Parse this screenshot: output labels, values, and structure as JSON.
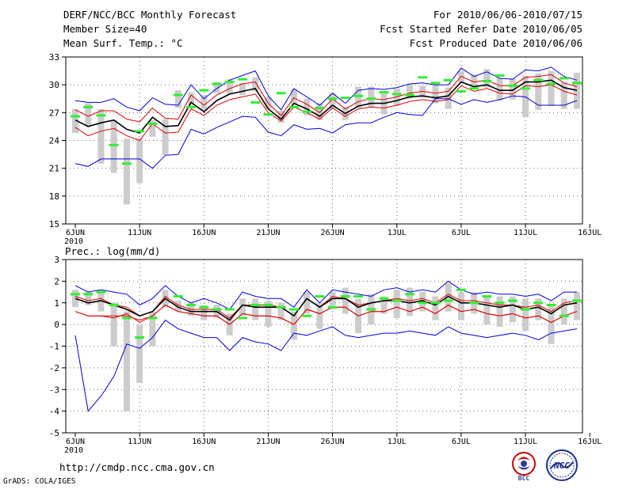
{
  "header": {
    "title": "DERF/NCC/BCC Monthly Forecast",
    "member_size": "Member Size=40",
    "variable_temp": "Mean Surf. Temp.: °C",
    "period": "For 2010/06/06-2010/07/15",
    "start_date": "Fcst Started Refer Date 2010/06/05",
    "produced_date": "Fcst Produced Date 2010/06/06"
  },
  "footer": {
    "url": "http://cmdp.ncc.cma.gov.cn",
    "credit": "GrADS: COLA/IGES",
    "logo_bcc": "BCC",
    "logo_ncc": "NCC"
  },
  "colors": {
    "mean_line": "#000000",
    "envelope_line": "#0000dd",
    "inner_line": "#dd0000",
    "box": "#cccccc",
    "median_tick": "#33ee33",
    "grid": "#666666"
  },
  "chart_data": [
    {
      "type": "line",
      "title": "Mean Surf. Temp.: °C",
      "x_tick_labels": [
        "6JUN",
        "11JUN",
        "16JUN",
        "21JUN",
        "26JUN",
        "1JUL",
        "6JUL",
        "11JUL",
        "16JUL"
      ],
      "x_tick_days": [
        1,
        6,
        11,
        16,
        21,
        26,
        31,
        36,
        41
      ],
      "x_sublabel": "2010",
      "days": [
        1,
        2,
        3,
        4,
        5,
        6,
        7,
        8,
        9,
        10,
        11,
        12,
        13,
        14,
        15,
        16,
        17,
        18,
        19,
        20,
        21,
        22,
        23,
        24,
        25,
        26,
        27,
        28,
        29,
        30,
        31,
        32,
        33,
        34,
        35,
        36,
        37,
        38,
        39,
        40
      ],
      "ylim": [
        15,
        33
      ],
      "yticks": [
        15,
        18,
        21,
        24,
        27,
        30,
        33
      ],
      "series": [
        {
          "name": "max",
          "values": [
            28.3,
            28.1,
            28.1,
            28.5,
            27.6,
            27.2,
            28.6,
            27.9,
            27.8,
            30.0,
            28.5,
            29.6,
            30.5,
            31.0,
            31.5,
            28.8,
            27.3,
            29.6,
            28.7,
            27.8,
            29.1,
            28.0,
            29.4,
            29.6,
            29.5,
            29.7,
            30.1,
            30.2,
            30.0,
            30.0,
            31.8,
            30.9,
            31.4,
            30.7,
            30.6,
            31.6,
            31.5,
            31.9,
            30.9,
            30.5
          ]
        },
        {
          "name": "upper",
          "values": [
            27.3,
            26.6,
            27.2,
            27.2,
            26.3,
            26.0,
            27.5,
            26.4,
            26.3,
            28.9,
            27.8,
            28.9,
            29.6,
            30.1,
            30.3,
            28.0,
            26.7,
            28.6,
            27.9,
            27.0,
            28.5,
            27.4,
            28.2,
            28.5,
            28.4,
            28.7,
            29.1,
            29.3,
            29.1,
            29.3,
            30.9,
            30.3,
            30.5,
            29.9,
            29.9,
            30.8,
            30.9,
            31.1,
            30.2,
            29.8
          ]
        },
        {
          "name": "mean",
          "values": [
            26.2,
            25.5,
            25.9,
            26.2,
            25.2,
            24.8,
            26.5,
            25.5,
            25.6,
            28.1,
            27.1,
            28.3,
            29.0,
            29.3,
            29.6,
            27.4,
            26.3,
            28.0,
            27.4,
            26.6,
            27.8,
            26.9,
            27.7,
            28.0,
            28.0,
            28.3,
            28.7,
            28.8,
            28.6,
            28.8,
            30.3,
            29.8,
            30.0,
            29.4,
            29.4,
            30.3,
            30.3,
            30.5,
            29.7,
            29.4
          ]
        },
        {
          "name": "lower",
          "values": [
            25.4,
            24.5,
            25.0,
            25.3,
            24.5,
            24.0,
            25.8,
            24.8,
            24.9,
            27.4,
            26.7,
            27.8,
            28.4,
            28.7,
            29.0,
            27.0,
            26.1,
            27.6,
            27.0,
            26.3,
            27.5,
            26.6,
            27.4,
            27.6,
            27.5,
            27.8,
            28.2,
            28.4,
            28.2,
            28.4,
            29.9,
            29.3,
            29.6,
            29.1,
            29.0,
            29.9,
            29.8,
            30.0,
            29.3,
            28.9
          ]
        },
        {
          "name": "min",
          "values": [
            21.5,
            21.2,
            22.0,
            22.0,
            22.0,
            22.0,
            21.0,
            22.4,
            22.5,
            25.2,
            24.7,
            25.4,
            26.0,
            26.6,
            26.5,
            24.9,
            24.5,
            25.7,
            25.2,
            25.3,
            24.8,
            25.7,
            25.9,
            25.9,
            26.5,
            27.0,
            26.8,
            26.7,
            28.5,
            28.5,
            27.9,
            28.4,
            28.1,
            28.4,
            28.8,
            28.7,
            27.8,
            27.8,
            27.8,
            28.3
          ]
        }
      ],
      "boxes": [
        [
          24.8,
          27.4
        ],
        [
          25.6,
          28.0
        ],
        [
          21.5,
          27.4
        ],
        [
          20.5,
          26.2
        ],
        [
          17.1,
          24.2
        ],
        [
          19.4,
          24.2
        ],
        [
          24.4,
          26.2
        ],
        [
          22.4,
          26.3
        ],
        [
          27.5,
          29.4
        ],
        [
          27.8,
          29.2
        ],
        [
          27.3,
          28.9
        ],
        [
          29.1,
          30.3
        ],
        [
          29.0,
          30.6
        ],
        [
          28.9,
          30.2
        ],
        [
          29.3,
          30.8
        ],
        [
          27.4,
          28.7
        ],
        [
          25.9,
          27.2
        ],
        [
          27.9,
          29.5
        ],
        [
          26.7,
          28.5
        ],
        [
          26.2,
          28.0
        ],
        [
          27.4,
          29.1
        ],
        [
          26.2,
          27.6
        ],
        [
          27.5,
          29.8
        ],
        [
          27.6,
          29.8
        ],
        [
          26.8,
          29.1
        ],
        [
          27.7,
          29.6
        ],
        [
          28.5,
          30.1
        ],
        [
          28.6,
          29.9
        ],
        [
          28.0,
          30.0
        ],
        [
          27.4,
          29.7
        ],
        [
          30.2,
          31.5
        ],
        [
          29.8,
          31.1
        ],
        [
          29.7,
          31.7
        ],
        [
          28.3,
          30.7
        ],
        [
          28.4,
          30.7
        ],
        [
          26.5,
          31.0
        ],
        [
          27.3,
          31.2
        ],
        [
          27.7,
          31.5
        ],
        [
          27.4,
          30.3
        ],
        [
          27.4,
          31.3
        ]
      ],
      "medians": [
        26.6,
        27.6,
        26.7,
        23.5,
        21.5,
        25.0,
        25.8,
        28.9,
        27.6,
        29.4,
        30.1,
        30.3,
        30.6,
        28.1,
        26.8,
        29.1,
        27.6,
        27.1,
        27.5,
        28.5,
        28.6,
        28.8,
        28.5,
        29.2,
        29.0,
        28.9,
        30.8,
        30.2,
        30.5,
        29.3,
        29.6,
        30.4,
        31.0,
        29.9,
        29.6,
        30.5,
        30.1,
        30.7,
        30.2,
        30.2
      ],
      "median_days": [
        1,
        2,
        3,
        4,
        5,
        6,
        7,
        9,
        10,
        11,
        12,
        13,
        14,
        15,
        16,
        17,
        18,
        19,
        20,
        21,
        22,
        23,
        24,
        25,
        26,
        27,
        28,
        29,
        30,
        31,
        32,
        33,
        34,
        35,
        36,
        37,
        38,
        39,
        40,
        40
      ]
    },
    {
      "type": "line",
      "title": "Prec.: log(mm/d)",
      "x_tick_labels": [
        "6JUN",
        "11JUN",
        "16JUN",
        "21JUN",
        "26JUN",
        "1JUL",
        "6JUL",
        "11JUL",
        "16JUL"
      ],
      "x_tick_days": [
        1,
        6,
        11,
        16,
        21,
        26,
        31,
        36,
        41
      ],
      "x_sublabel": "2010",
      "days": [
        1,
        2,
        3,
        4,
        5,
        6,
        7,
        8,
        9,
        10,
        11,
        12,
        13,
        14,
        15,
        16,
        17,
        18,
        19,
        20,
        21,
        22,
        23,
        24,
        25,
        26,
        27,
        28,
        29,
        30,
        31,
        32,
        33,
        34,
        35,
        36,
        37,
        38,
        39,
        40
      ],
      "ylim": [
        -5,
        3
      ],
      "yticks": [
        -5,
        -4,
        -3,
        -2,
        -1,
        0,
        1,
        2,
        3
      ],
      "series": [
        {
          "name": "max",
          "values": [
            1.8,
            1.5,
            1.6,
            1.5,
            1.4,
            0.9,
            1.2,
            1.8,
            1.3,
            1.0,
            1.2,
            1.0,
            0.7,
            1.5,
            1.3,
            1.2,
            1.2,
            0.8,
            1.6,
            1.0,
            1.6,
            1.5,
            1.4,
            1.3,
            1.6,
            1.7,
            1.5,
            1.6,
            1.5,
            2.0,
            1.6,
            1.4,
            1.5,
            1.4,
            1.4,
            1.3,
            1.4,
            1.1,
            1.5,
            1.5
          ]
        },
        {
          "name": "upper",
          "values": [
            1.3,
            1.1,
            1.2,
            0.9,
            0.8,
            0.4,
            0.6,
            1.3,
            0.9,
            0.7,
            0.7,
            0.7,
            0.3,
            0.9,
            0.9,
            0.9,
            0.8,
            0.4,
            1.2,
            0.8,
            1.3,
            1.2,
            0.9,
            1.0,
            1.1,
            1.2,
            1.1,
            1.2,
            1.0,
            1.4,
            1.1,
            1.1,
            1.0,
            0.9,
            0.9,
            0.8,
            0.9,
            0.6,
            1.0,
            1.1
          ]
        },
        {
          "name": "mean",
          "values": [
            1.2,
            1.0,
            1.1,
            0.9,
            0.7,
            0.4,
            0.6,
            1.2,
            0.8,
            0.6,
            0.6,
            0.6,
            0.2,
            0.9,
            0.8,
            0.8,
            0.8,
            0.4,
            1.2,
            0.8,
            1.2,
            1.2,
            0.8,
            1.0,
            1.1,
            1.1,
            1.0,
            1.1,
            0.9,
            1.3,
            1.0,
            1.0,
            0.9,
            0.8,
            0.9,
            0.7,
            0.8,
            0.5,
            0.9,
            1.0
          ]
        },
        {
          "name": "lower",
          "values": [
            0.6,
            0.4,
            0.4,
            0.3,
            0.5,
            0.1,
            0.4,
            0.9,
            0.6,
            0.5,
            0.4,
            0.4,
            0.0,
            0.5,
            0.4,
            0.4,
            0.3,
            0.0,
            0.7,
            0.5,
            0.8,
            0.8,
            0.4,
            0.6,
            0.6,
            0.8,
            0.6,
            0.8,
            0.5,
            0.9,
            0.6,
            0.7,
            0.5,
            0.4,
            0.5,
            0.3,
            0.4,
            0.1,
            0.4,
            0.6
          ]
        },
        {
          "name": "min",
          "values": [
            -0.5,
            -4.0,
            -3.3,
            -2.4,
            -0.9,
            -1.1,
            -0.6,
            0.2,
            -0.2,
            -0.4,
            -0.6,
            -0.6,
            -1.2,
            -0.6,
            -0.8,
            -0.9,
            -1.2,
            -0.4,
            -0.5,
            -0.3,
            -0.1,
            -0.5,
            -0.6,
            -0.5,
            -0.4,
            -0.4,
            -0.3,
            -0.4,
            -0.5,
            -0.1,
            -0.4,
            -0.5,
            -0.6,
            -0.5,
            -0.4,
            -0.5,
            -0.7,
            -0.4,
            -0.3,
            -0.2
          ]
        },
        {
          "name": "red_mid",
          "values": [
            0.6,
            0.4,
            0.4,
            0.4,
            0.4,
            0.2,
            0.4,
            0.9,
            0.6,
            0.5,
            0.4,
            0.4,
            0.0,
            0.5,
            0.4,
            0.4,
            0.3,
            0.0,
            0.7,
            0.5,
            0.8,
            0.8,
            0.4,
            0.6,
            0.6,
            0.8,
            0.6,
            0.8,
            0.5,
            0.9,
            0.6,
            0.7,
            0.5,
            0.4,
            0.5,
            0.3,
            0.4,
            0.1,
            0.4,
            0.6
          ]
        }
      ],
      "boxes": [
        [
          0.8,
          1.6
        ],
        [
          0.9,
          1.5
        ],
        [
          0.6,
          1.5
        ],
        [
          -1.0,
          1.0
        ],
        [
          -4.0,
          0.6
        ],
        [
          -2.7,
          0.0
        ],
        [
          -1.0,
          0.6
        ],
        [
          0.8,
          1.6
        ],
        [
          0.6,
          1.1
        ],
        [
          0.4,
          1.0
        ],
        [
          0.2,
          0.9
        ],
        [
          0.3,
          0.9
        ],
        [
          -0.5,
          0.5
        ],
        [
          0.4,
          1.2
        ],
        [
          0.2,
          1.2
        ],
        [
          -0.1,
          1.1
        ],
        [
          0.2,
          1.0
        ],
        [
          -0.7,
          0.6
        ],
        [
          0.5,
          1.5
        ],
        [
          -0.2,
          1.0
        ],
        [
          0.7,
          1.5
        ],
        [
          0.5,
          1.7
        ],
        [
          -0.4,
          1.2
        ],
        [
          0.0,
          1.4
        ],
        [
          0.5,
          1.3
        ],
        [
          0.3,
          1.6
        ],
        [
          0.4,
          1.7
        ],
        [
          0.6,
          1.5
        ],
        [
          0.2,
          1.3
        ],
        [
          0.6,
          1.9
        ],
        [
          0.2,
          1.5
        ],
        [
          0.5,
          1.5
        ],
        [
          0.0,
          1.3
        ],
        [
          -0.1,
          1.3
        ],
        [
          0.1,
          1.3
        ],
        [
          -0.3,
          1.2
        ],
        [
          0.2,
          1.2
        ],
        [
          -0.9,
          0.9
        ],
        [
          0.0,
          1.2
        ],
        [
          0.2,
          1.5
        ]
      ],
      "medians": [
        1.4,
        1.4,
        1.5,
        0.9,
        0.3,
        -0.6,
        0.3,
        1.3,
        0.9,
        0.8,
        0.7,
        0.7,
        0.3,
        0.9,
        0.9,
        0.8,
        0.7,
        0.4,
        1.3,
        0.8,
        1.3,
        1.3,
        0.7,
        1.2,
        1.1,
        1.4,
        1.0,
        1.0,
        1.1,
        1.6,
        1.0,
        1.3,
        1.0,
        1.1,
        0.7,
        1.0,
        0.9,
        0.4,
        1.1,
        1.1
      ],
      "median_days": [
        1,
        2,
        3,
        4,
        5,
        6,
        7,
        9,
        10,
        11,
        12,
        13,
        14,
        15,
        16,
        17,
        18,
        19,
        20,
        21,
        22,
        23,
        24,
        25,
        26,
        27,
        28,
        29,
        30,
        31,
        32,
        33,
        34,
        35,
        36,
        37,
        38,
        39,
        40,
        40
      ]
    }
  ]
}
